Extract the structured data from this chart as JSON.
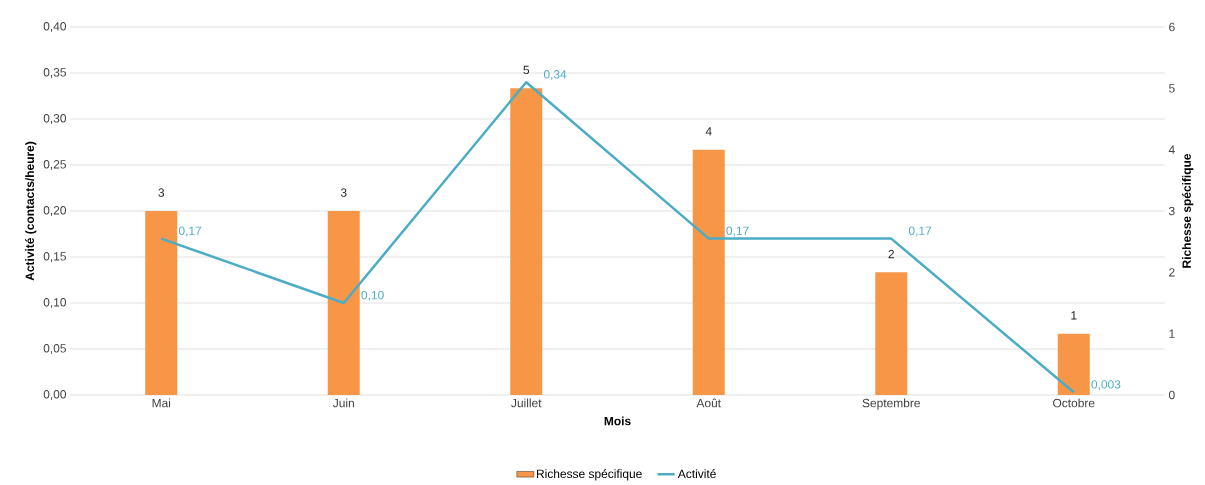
{
  "chart_data": {
    "type": "bar",
    "categories": [
      "Mai",
      "Juin",
      "Juillet",
      "Août",
      "Septembre",
      "Octobre"
    ],
    "xlabel": "Mois",
    "ylabel": "Activité (contacts/heure)",
    "y2label": "Richesse spécifique",
    "ylim": [
      0,
      0.4
    ],
    "yticks": [
      {
        "value": 0,
        "label": "0,00"
      },
      {
        "value": 0.05,
        "label": "0,05"
      },
      {
        "value": 0.1,
        "label": "0,10"
      },
      {
        "value": 0.15,
        "label": "0,15"
      },
      {
        "value": 0.2,
        "label": "0,20"
      },
      {
        "value": 0.25,
        "label": "0,25"
      },
      {
        "value": 0.3,
        "label": "0,30"
      },
      {
        "value": 0.35,
        "label": "0,35"
      },
      {
        "value": 0.4,
        "label": "0,40"
      }
    ],
    "y2lim": [
      0,
      6
    ],
    "y2ticks": [
      0,
      1,
      2,
      3,
      4,
      5,
      6
    ],
    "grid": "y",
    "legend": "bottom",
    "series": [
      {
        "name": "Richesse spécifique",
        "axis": "y2",
        "color": "#f79646",
        "values": [
          3,
          3,
          5,
          4,
          2,
          1
        ],
        "value_labels": [
          "3",
          "3",
          "5",
          "4",
          "2",
          "1"
        ]
      },
      {
        "name": "Activité",
        "type": "line",
        "axis": "y",
        "color": "#4bacc6",
        "values": [
          0.17,
          0.1,
          0.34,
          0.17,
          0.17,
          0.003
        ],
        "value_labels": [
          "0,17",
          "0,10",
          "0,34",
          "0,17",
          "0,17",
          "0,003"
        ]
      }
    ]
  }
}
